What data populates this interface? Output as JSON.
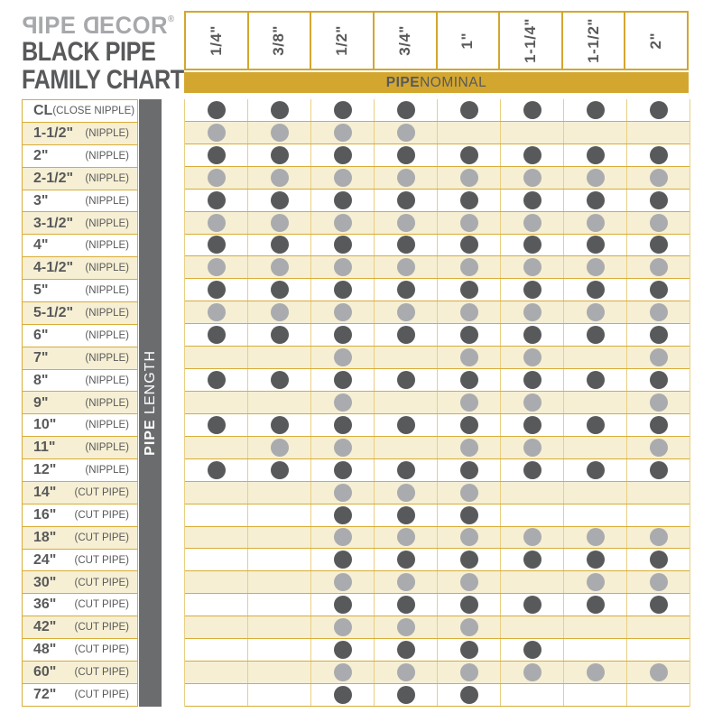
{
  "colors": {
    "white": "#ffffff",
    "gold": "#d3a62f",
    "gold_line": "#d8ac38",
    "gold_faint": "#e8cf82",
    "cream": "#f6efd3",
    "dark_gray": "#58595b",
    "light_gray": "#a9abae",
    "bar_gray": "#6b6c6e",
    "logo_gray": "#a6a8ab"
  },
  "logo": {
    "p": "P",
    "ipe": "IPE",
    "d": "D",
    "ecor": "ECOR",
    "reg": "®",
    "title_line1": "BLACK PIPE",
    "title_line2": "FAMILY CHART"
  },
  "header": {
    "banner_bold": "PIPE",
    "banner_rest": " NOMINAL"
  },
  "sidebar": {
    "label_bold": "PIPE",
    "label_rest": " LENGTH"
  },
  "chart_data": {
    "type": "table",
    "title": "PIPE DECOR BLACK PIPE FAMILY CHART",
    "x_axis_label": "PIPE NOMINAL",
    "y_axis_label": "PIPE LENGTH",
    "columns": [
      "1/4\"",
      "3/8\"",
      "1/2\"",
      "3/4\"",
      "1\"",
      "1-1/4\"",
      "1-1/2\"",
      "2\""
    ],
    "dot_legend": {
      "D": "dark gray dot",
      "L": "light gray dot",
      "-": "no dot"
    },
    "rows": [
      {
        "size": "CL",
        "type": "(CLOSE NIPPLE)",
        "dots": "DDDDDDDD"
      },
      {
        "size": "1-1/2\"",
        "type": "(NIPPLE)",
        "dots": "LLLL----"
      },
      {
        "size": "2\"",
        "type": "(NIPPLE)",
        "dots": "DDDDDDDD"
      },
      {
        "size": "2-1/2\"",
        "type": "(NIPPLE)",
        "dots": "LLLLLLLL"
      },
      {
        "size": "3\"",
        "type": "(NIPPLE)",
        "dots": "DDDDDDDD"
      },
      {
        "size": "3-1/2\"",
        "type": "(NIPPLE)",
        "dots": "LLLLLLLL"
      },
      {
        "size": "4\"",
        "type": "(NIPPLE)",
        "dots": "DDDDDDDD"
      },
      {
        "size": "4-1/2\"",
        "type": "(NIPPLE)",
        "dots": "LLLLLLLL"
      },
      {
        "size": "5\"",
        "type": "(NIPPLE)",
        "dots": "DDDDDDDD"
      },
      {
        "size": "5-1/2\"",
        "type": "(NIPPLE)",
        "dots": "LLLLLLLL"
      },
      {
        "size": "6\"",
        "type": "(NIPPLE)",
        "dots": "DDDDDDDD"
      },
      {
        "size": "7\"",
        "type": "(NIPPLE)",
        "dots": "--L-LL-L"
      },
      {
        "size": "8\"",
        "type": "(NIPPLE)",
        "dots": "DDDDDDDD"
      },
      {
        "size": "9\"",
        "type": "(NIPPLE)",
        "dots": "--L-LL-L"
      },
      {
        "size": "10\"",
        "type": "(NIPPLE)",
        "dots": "DDDDDDDD"
      },
      {
        "size": "11\"",
        "type": "(NIPPLE)",
        "dots": "-LL-LL-L"
      },
      {
        "size": "12\"",
        "type": "(NIPPLE)",
        "dots": "DDDDDDDD"
      },
      {
        "size": "14\"",
        "type": "(CUT PIPE)",
        "dots": "--LLL---"
      },
      {
        "size": "16\"",
        "type": "(CUT PIPE)",
        "dots": "--DDD---"
      },
      {
        "size": "18\"",
        "type": "(CUT PIPE)",
        "dots": "--LLLLLL"
      },
      {
        "size": "24\"",
        "type": "(CUT PIPE)",
        "dots": "--DDDDDD"
      },
      {
        "size": "30\"",
        "type": "(CUT PIPE)",
        "dots": "--LLL-LL"
      },
      {
        "size": "36\"",
        "type": "(CUT PIPE)",
        "dots": "--DDDDDD"
      },
      {
        "size": "42\"",
        "type": "(CUT PIPE)",
        "dots": "--LLL---"
      },
      {
        "size": "48\"",
        "type": "(CUT PIPE)",
        "dots": "--DDDD--"
      },
      {
        "size": "60\"",
        "type": "(CUT PIPE)",
        "dots": "--LLLLLL"
      },
      {
        "size": "72\"",
        "type": "(CUT PIPE)",
        "dots": "--DDD---"
      }
    ]
  }
}
